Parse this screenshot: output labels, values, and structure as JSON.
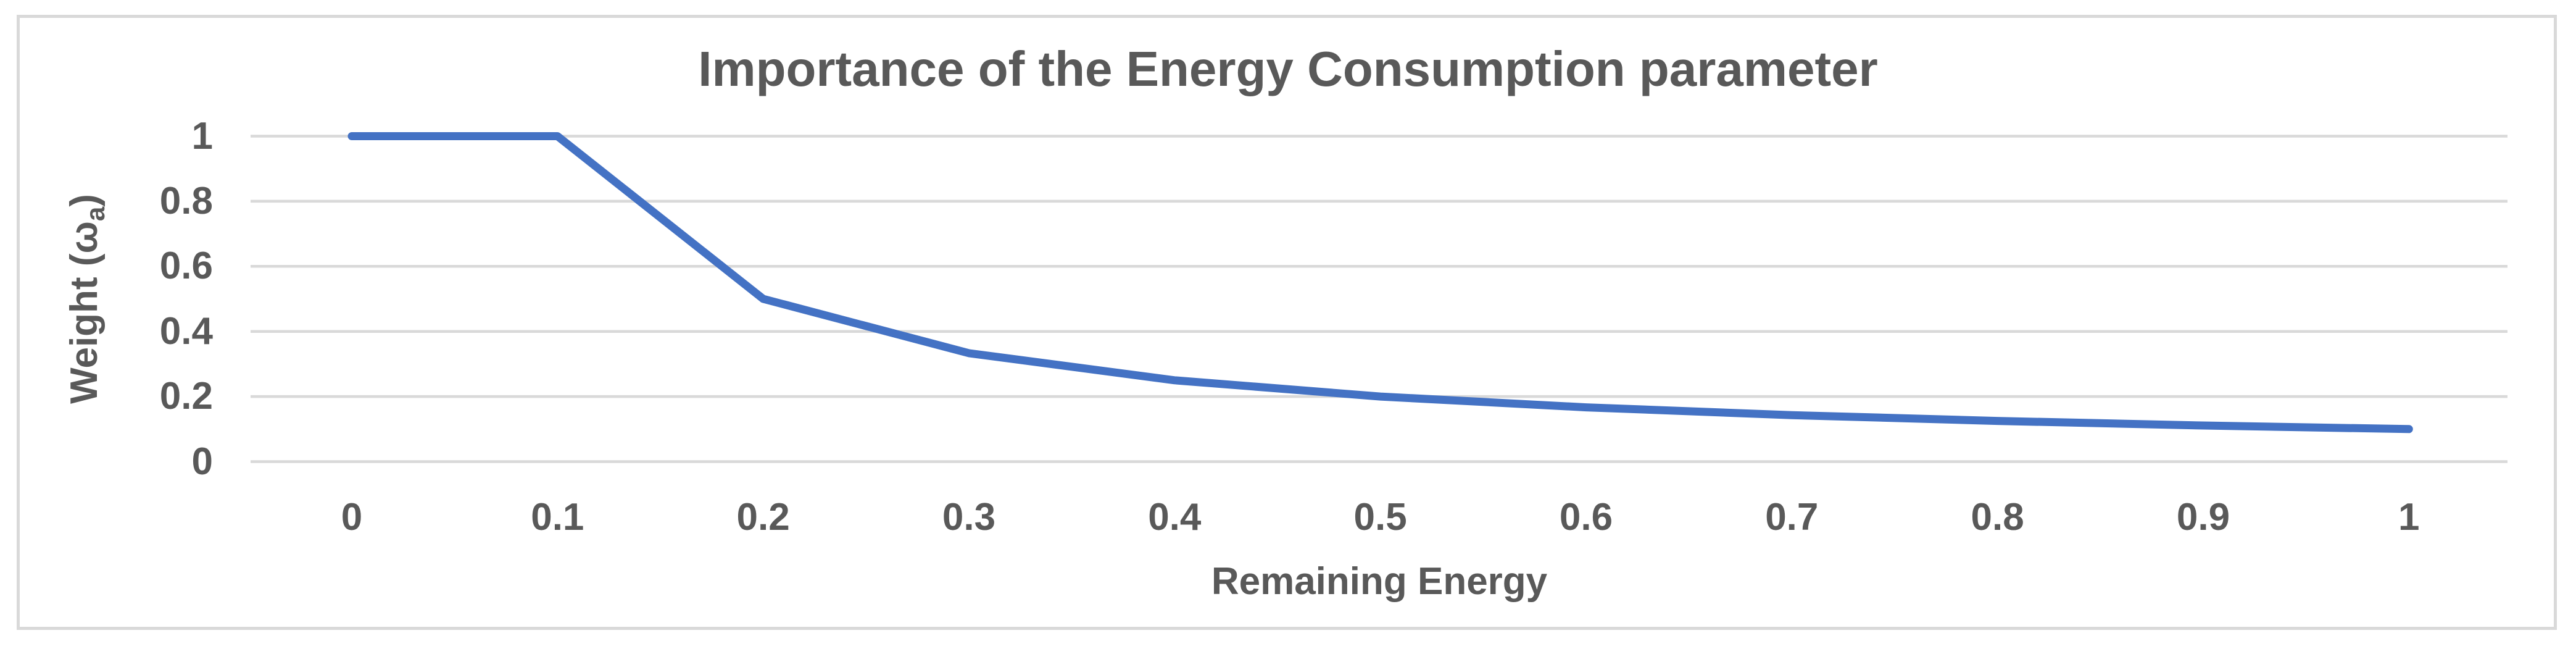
{
  "chart": {
    "title": "Importance of the Energy Consumption parameter",
    "x_axis_title": "Remaining Energy",
    "y_axis_title_pre": "Weight (ω",
    "y_axis_title_sub": "a",
    "y_axis_title_post": ")"
  },
  "chart_data": {
    "type": "line",
    "title": "Importance of the Energy Consumption parameter",
    "xlabel": "Remaining Energy",
    "ylabel": "Weight (ωa)",
    "x": [
      0,
      0.1,
      0.2,
      0.3,
      0.4,
      0.5,
      0.6,
      0.7,
      0.8,
      0.9,
      1
    ],
    "values": [
      1,
      1,
      0.5,
      0.3333,
      0.25,
      0.2,
      0.1667,
      0.1429,
      0.125,
      0.1111,
      0.1
    ],
    "x_tick_labels": [
      "0",
      "0.1",
      "0.2",
      "0.3",
      "0.4",
      "0.5",
      "0.6",
      "0.7",
      "0.8",
      "0.9",
      "1"
    ],
    "y_tick_labels": [
      "1",
      "0.8",
      "0.6",
      "0.4",
      "0.2",
      "0"
    ],
    "y_tick_values": [
      1,
      0.8,
      0.6,
      0.4,
      0.2,
      0
    ],
    "xlim": [
      0,
      1
    ],
    "ylim": [
      0,
      1
    ],
    "grid": "horizontal",
    "legend": "none",
    "line_shape": "straight",
    "colors": {
      "series": "#4472C4",
      "gridline": "#D9D9D9",
      "frame_border": "#D9D9D9",
      "text": "#595959",
      "background": "#FFFFFF"
    }
  }
}
